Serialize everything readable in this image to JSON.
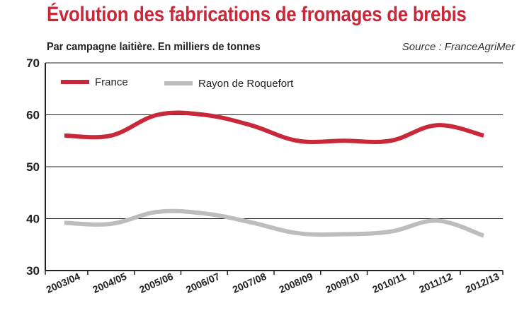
{
  "chart_data": {
    "type": "line",
    "title": "Évolution des fabrications de fromages de brebis",
    "subtitle": "Par campagne laitière. En milliers de tonnes",
    "source": "Source : FranceAgriMer",
    "categories": [
      "2003/04",
      "2004/05",
      "2005/06",
      "2006/07",
      "2007/08",
      "2008/09",
      "2009/10",
      "2010/11",
      "2011/12",
      "2012/13"
    ],
    "ylim": [
      30,
      70
    ],
    "yticks": [
      30,
      40,
      50,
      60,
      70
    ],
    "grid": true,
    "legend_position": "top-left",
    "series": [
      {
        "name": "France",
        "color": "#c8283a",
        "values": [
          56,
          56,
          60,
          60,
          58,
          55,
          55,
          55,
          58,
          56
        ]
      },
      {
        "name": "Rayon de Roquefort",
        "color": "#bdbdbd",
        "values": [
          39.2,
          39,
          41.3,
          41,
          39.3,
          37.2,
          37,
          37.5,
          39.6,
          36.7
        ]
      }
    ]
  }
}
